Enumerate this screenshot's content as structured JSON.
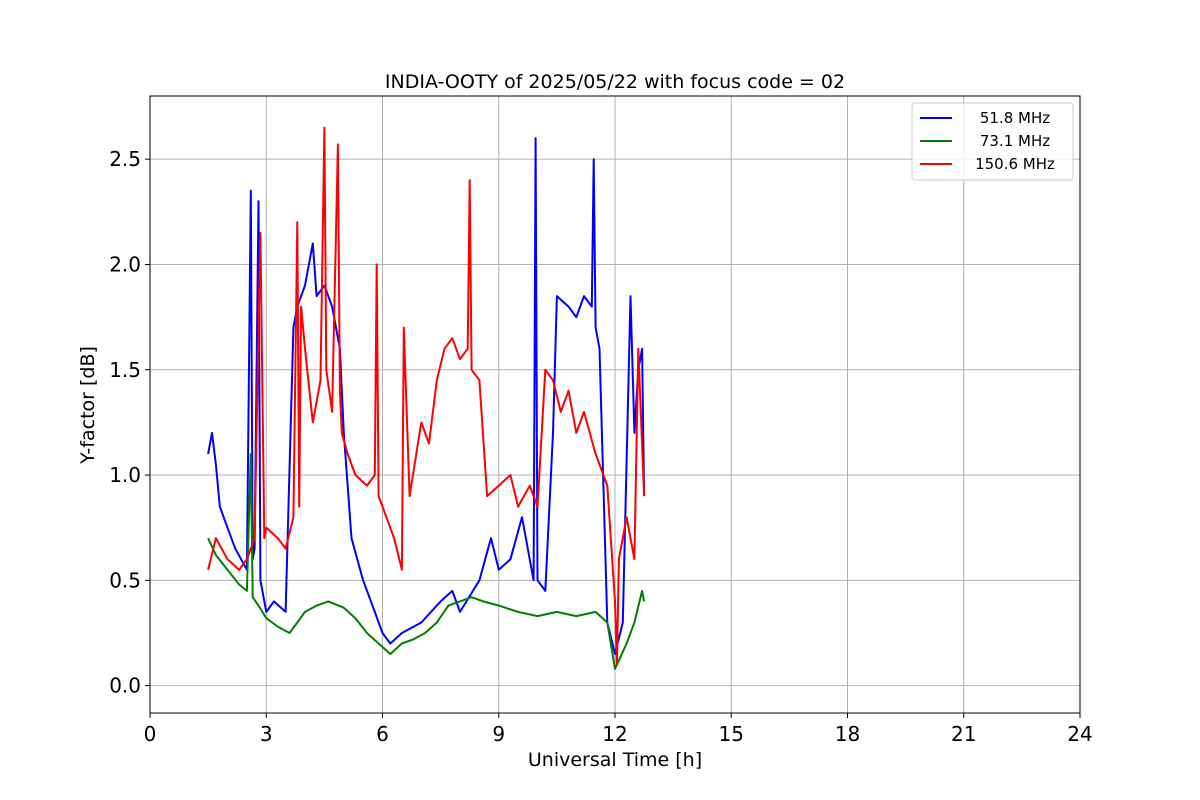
{
  "chart_data": {
    "type": "line",
    "title": "INDIA-OOTY of 2025/05/22 with focus code = 02",
    "xlabel": "Universal Time [h]",
    "ylabel": "Y-factor [dB]",
    "xlim": [
      0,
      24
    ],
    "ylim": [
      -0.13,
      2.8
    ],
    "xticks": [
      0,
      3,
      6,
      9,
      12,
      15,
      18,
      21,
      24
    ],
    "yticks": [
      "0.0",
      "0.5",
      "1.0",
      "1.5",
      "2.0",
      "2.5"
    ],
    "grid": true,
    "legend_position": "top-right",
    "series": [
      {
        "name": "51.8 MHz",
        "color": "#0000ff",
        "x": [
          1.5,
          1.6,
          1.7,
          1.8,
          2.0,
          2.2,
          2.5,
          2.6,
          2.65,
          2.7,
          2.8,
          2.85,
          2.9,
          3.0,
          3.2,
          3.5,
          3.7,
          3.8,
          4.0,
          4.2,
          4.3,
          4.5,
          4.7,
          4.9,
          5.0,
          5.2,
          5.5,
          5.8,
          6.0,
          6.2,
          6.5,
          7.0,
          7.5,
          7.8,
          8.0,
          8.5,
          8.8,
          9.0,
          9.3,
          9.6,
          9.9,
          9.95,
          10.0,
          10.2,
          10.4,
          10.5,
          10.8,
          11.0,
          11.2,
          11.4,
          11.45,
          11.5,
          11.6,
          11.8,
          12.0,
          12.2,
          12.4,
          12.5,
          12.6,
          12.7,
          12.75
        ],
        "y": [
          1.1,
          1.2,
          1.05,
          0.85,
          0.75,
          0.65,
          0.55,
          2.35,
          0.6,
          0.65,
          2.3,
          0.5,
          0.45,
          0.35,
          0.4,
          0.35,
          1.7,
          1.8,
          1.9,
          2.1,
          1.85,
          1.9,
          1.8,
          1.6,
          1.2,
          0.7,
          0.5,
          0.35,
          0.25,
          0.2,
          0.25,
          0.3,
          0.4,
          0.45,
          0.35,
          0.5,
          0.7,
          0.55,
          0.6,
          0.8,
          0.5,
          2.6,
          0.5,
          0.45,
          1.2,
          1.85,
          1.8,
          1.75,
          1.85,
          1.8,
          2.5,
          1.7,
          1.6,
          0.3,
          0.15,
          0.3,
          1.85,
          1.2,
          1.5,
          1.6,
          0.9
        ]
      },
      {
        "name": "73.1 MHz",
        "color": "#008000",
        "x": [
          1.5,
          1.7,
          2.0,
          2.3,
          2.5,
          2.6,
          2.65,
          2.8,
          3.0,
          3.3,
          3.6,
          3.8,
          4.0,
          4.3,
          4.6,
          5.0,
          5.3,
          5.6,
          5.9,
          6.2,
          6.5,
          6.8,
          7.1,
          7.4,
          7.7,
          8.0,
          8.3,
          8.6,
          9.0,
          9.5,
          10.0,
          10.5,
          11.0,
          11.5,
          11.8,
          12.0,
          12.3,
          12.5,
          12.7,
          12.75
        ],
        "y": [
          0.7,
          0.62,
          0.55,
          0.48,
          0.45,
          1.1,
          0.42,
          0.38,
          0.32,
          0.28,
          0.25,
          0.3,
          0.35,
          0.38,
          0.4,
          0.37,
          0.32,
          0.25,
          0.2,
          0.15,
          0.2,
          0.22,
          0.25,
          0.3,
          0.38,
          0.4,
          0.42,
          0.4,
          0.38,
          0.35,
          0.33,
          0.35,
          0.33,
          0.35,
          0.3,
          0.08,
          0.2,
          0.3,
          0.45,
          0.4
        ]
      },
      {
        "name": "150.6 MHz",
        "color": "#ff0000",
        "x": [
          1.5,
          1.7,
          2.0,
          2.3,
          2.5,
          2.7,
          2.85,
          2.95,
          3.0,
          3.3,
          3.5,
          3.7,
          3.8,
          3.85,
          3.9,
          4.0,
          4.2,
          4.4,
          4.5,
          4.55,
          4.7,
          4.85,
          4.9,
          4.95,
          5.1,
          5.3,
          5.6,
          5.8,
          5.85,
          5.9,
          6.1,
          6.3,
          6.5,
          6.55,
          6.7,
          7.0,
          7.2,
          7.4,
          7.6,
          7.8,
          8.0,
          8.2,
          8.25,
          8.3,
          8.5,
          8.7,
          9.0,
          9.3,
          9.5,
          9.8,
          10.0,
          10.2,
          10.4,
          10.6,
          10.8,
          11.0,
          11.2,
          11.5,
          11.8,
          12.0,
          12.05,
          12.1,
          12.3,
          12.5,
          12.6,
          12.75
        ],
        "y": [
          0.55,
          0.7,
          0.6,
          0.55,
          0.6,
          0.7,
          2.15,
          0.7,
          0.75,
          0.7,
          0.65,
          0.8,
          2.2,
          0.85,
          1.8,
          1.6,
          1.25,
          1.45,
          2.65,
          1.5,
          1.3,
          2.57,
          1.4,
          1.2,
          1.1,
          1.0,
          0.95,
          1.0,
          2.0,
          0.9,
          0.8,
          0.7,
          0.55,
          1.7,
          0.9,
          1.25,
          1.15,
          1.45,
          1.6,
          1.65,
          1.55,
          1.6,
          2.4,
          1.5,
          1.45,
          0.9,
          0.95,
          1.0,
          0.85,
          0.95,
          0.85,
          1.5,
          1.45,
          1.3,
          1.4,
          1.2,
          1.3,
          1.1,
          0.95,
          0.4,
          0.1,
          0.6,
          0.8,
          0.6,
          1.6,
          0.9
        ]
      }
    ]
  }
}
